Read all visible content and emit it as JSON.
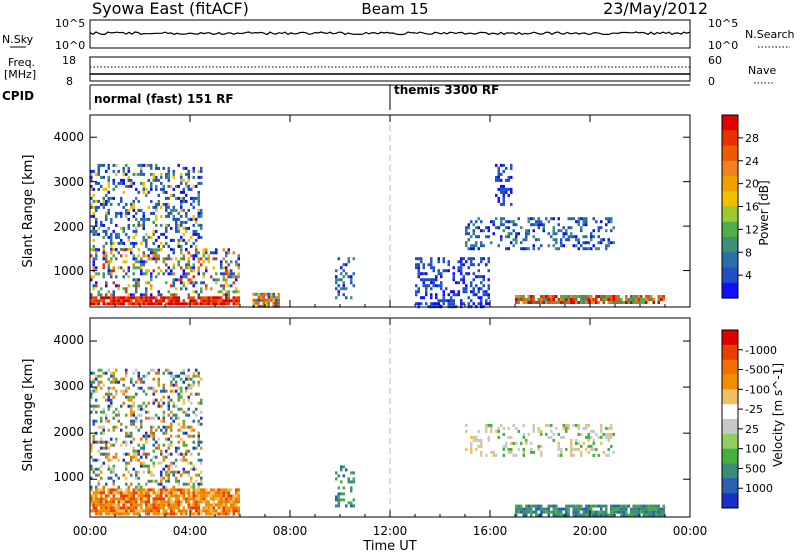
{
  "header": {
    "title": "Syowa East (fitACF)",
    "beam": "Beam 15",
    "date": "23/May/2012"
  },
  "sky_panel": {
    "left_label": "N.Sky",
    "left_ticks": [
      "10^5",
      "10^0"
    ],
    "right_label": "N.Search",
    "right_ticks": [
      "10^5",
      "10^0"
    ]
  },
  "freq_panel": {
    "left_label_1": "Freq.",
    "left_label_2": "[MHz]",
    "left_ticks": [
      "18",
      "8"
    ],
    "right_label": "Nave",
    "right_ticks": [
      "60",
      "0"
    ]
  },
  "cpid_panel": {
    "label": "CPID",
    "modes": [
      {
        "name": "normal (fast) 151 RF",
        "start": "00:00"
      },
      {
        "name": "themis 3300 RF",
        "start": "12:00"
      }
    ]
  },
  "x_axis": {
    "label": "Time UT",
    "ticks": [
      "00:00",
      "04:00",
      "08:00",
      "12:00",
      "16:00",
      "20:00",
      "00:00"
    ],
    "range_hours": [
      0,
      24
    ],
    "marker_hour": 12
  },
  "chart_data": [
    {
      "type": "heatmap",
      "quantity": "Power",
      "ylabel": "Slant Range [km]",
      "yticks": [
        "1000",
        "2000",
        "3000",
        "4000"
      ],
      "ylim": [
        180,
        4500
      ],
      "colorbar": {
        "title": "Power [dB]",
        "tick_labels": [
          "4",
          "8",
          "12",
          "16",
          "20",
          "24",
          "28"
        ],
        "colors": [
          "#1010ff",
          "#2050c8",
          "#2a6fa8",
          "#3d8f7a",
          "#4fb04a",
          "#9ac930",
          "#f0c000",
          "#f3a000",
          "#f08020",
          "#ee5a00",
          "#e83000",
          "#e00000"
        ]
      },
      "regions": [
        {
          "t": [
            0.0,
            6.0
          ],
          "range": [
            220,
            420
          ],
          "level": "28"
        },
        {
          "t": [
            0.0,
            6.0
          ],
          "range": [
            420,
            1500
          ],
          "level": "4-28"
        },
        {
          "t": [
            0.0,
            4.5
          ],
          "range": [
            1500,
            3400
          ],
          "level": "4-20"
        },
        {
          "t": [
            6.5,
            7.6
          ],
          "range": [
            220,
            500
          ],
          "level": "4-24"
        },
        {
          "t": [
            9.8,
            10.6
          ],
          "range": [
            400,
            1300
          ],
          "level": "4-12"
        },
        {
          "t": [
            13.0,
            16.0
          ],
          "range": [
            200,
            1300
          ],
          "level": "4-8"
        },
        {
          "t": [
            15.0,
            21.0
          ],
          "range": [
            1500,
            2200
          ],
          "level": "4-12"
        },
        {
          "t": [
            16.2,
            16.9
          ],
          "range": [
            2500,
            3400
          ],
          "level": "4-8"
        },
        {
          "t": [
            17.0,
            23.0
          ],
          "range": [
            250,
            450
          ],
          "level": "12-28"
        }
      ]
    },
    {
      "type": "heatmap",
      "quantity": "Velocity",
      "ylabel": "Slant Range [km]",
      "yticks": [
        "1000",
        "2000",
        "3000",
        "4000"
      ],
      "ylim": [
        180,
        4500
      ],
      "colorbar": {
        "title": "Velocity [m s^-1]",
        "tick_labels": [
          "1000",
          "500",
          "100",
          "25",
          "-25",
          "-100",
          "-500",
          "-1000"
        ],
        "colors": [
          "#1830c8",
          "#2a60b0",
          "#3d8a78",
          "#43b040",
          "#8fd060",
          "#c8c8c8",
          "#ffffff",
          "#f0c060",
          "#f09000",
          "#f07000",
          "#e84000",
          "#e00000"
        ]
      },
      "regions": [
        {
          "t": [
            0.0,
            6.0
          ],
          "range": [
            220,
            800
          ],
          "level": "-100 to -500"
        },
        {
          "t": [
            0.0,
            4.5
          ],
          "range": [
            800,
            3400
          ],
          "level": "mixed"
        },
        {
          "t": [
            9.8,
            10.6
          ],
          "range": [
            400,
            1300
          ],
          "level": "100-500"
        },
        {
          "t": [
            15.0,
            21.0
          ],
          "range": [
            1500,
            2200
          ],
          "level": "25 to -25"
        },
        {
          "t": [
            17.0,
            23.0
          ],
          "range": [
            250,
            450
          ],
          "level": "100"
        }
      ]
    }
  ]
}
